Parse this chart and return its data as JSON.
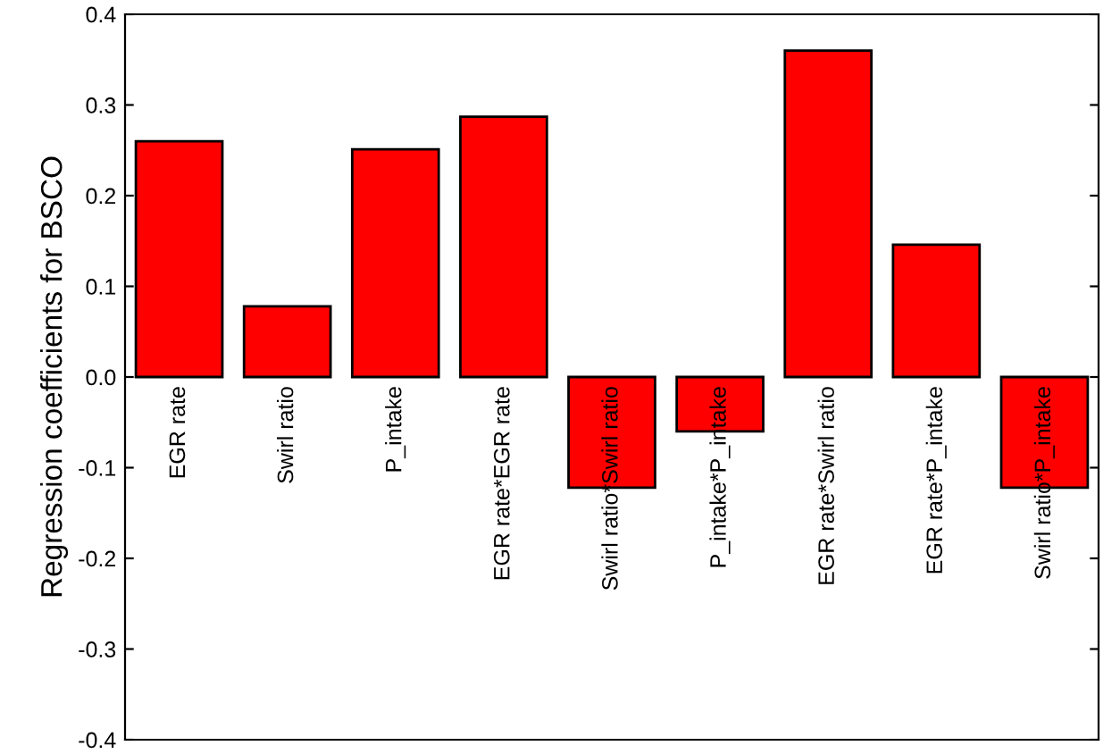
{
  "chart_data": {
    "type": "bar",
    "ylabel": "Regression coefficients for BSCO",
    "categories": [
      "EGR rate",
      "Swirl ratio",
      "P_intake",
      "EGR rate*EGR rate",
      "Swirl ratio*Swirl ratio",
      "P_intake*P_intake",
      "EGR rate*Swirl ratio",
      "EGR rate*P_intake",
      "Swirl ratio*P_intake"
    ],
    "values": [
      0.26,
      0.078,
      0.251,
      0.287,
      -0.122,
      -0.06,
      0.36,
      0.146,
      -0.122
    ],
    "color": "#ff0000",
    "ylim": [
      -0.4,
      0.4
    ],
    "yticks": [
      -0.4,
      -0.3,
      -0.2,
      -0.1,
      {
        "value": 0,
        "label": "0.0"
      },
      0.1,
      0.2,
      0.3,
      0.4
    ],
    "grid": false,
    "legend": false
  }
}
